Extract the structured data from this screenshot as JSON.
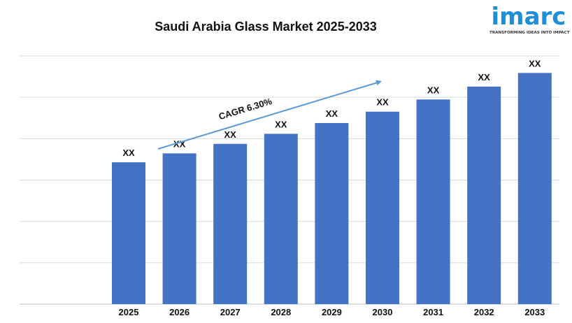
{
  "brand": {
    "name": "imarc",
    "tagline": "TRANSFORMING IDEAS INTO IMPACT"
  },
  "chart_data": {
    "type": "bar",
    "title": "Saudi Arabia Glass Market 2025-2033",
    "xlabel": "",
    "ylabel": "",
    "categories": [
      "2025",
      "2026",
      "2027",
      "2028",
      "2029",
      "2030",
      "2031",
      "2032",
      "2033"
    ],
    "values": [
      1.0,
      1.063,
      1.13,
      1.201,
      1.277,
      1.357,
      1.443,
      1.534,
      1.63
    ],
    "data_labels": [
      "XX",
      "XX",
      "XX",
      "XX",
      "XX",
      "XX",
      "XX",
      "XX",
      "XX"
    ],
    "ylim": [
      0,
      1.75
    ],
    "grid": true,
    "bar_color": "#4472c4",
    "annotation": {
      "text": "CAGR 6.30%",
      "arrow_color": "#5b9bd5"
    }
  }
}
